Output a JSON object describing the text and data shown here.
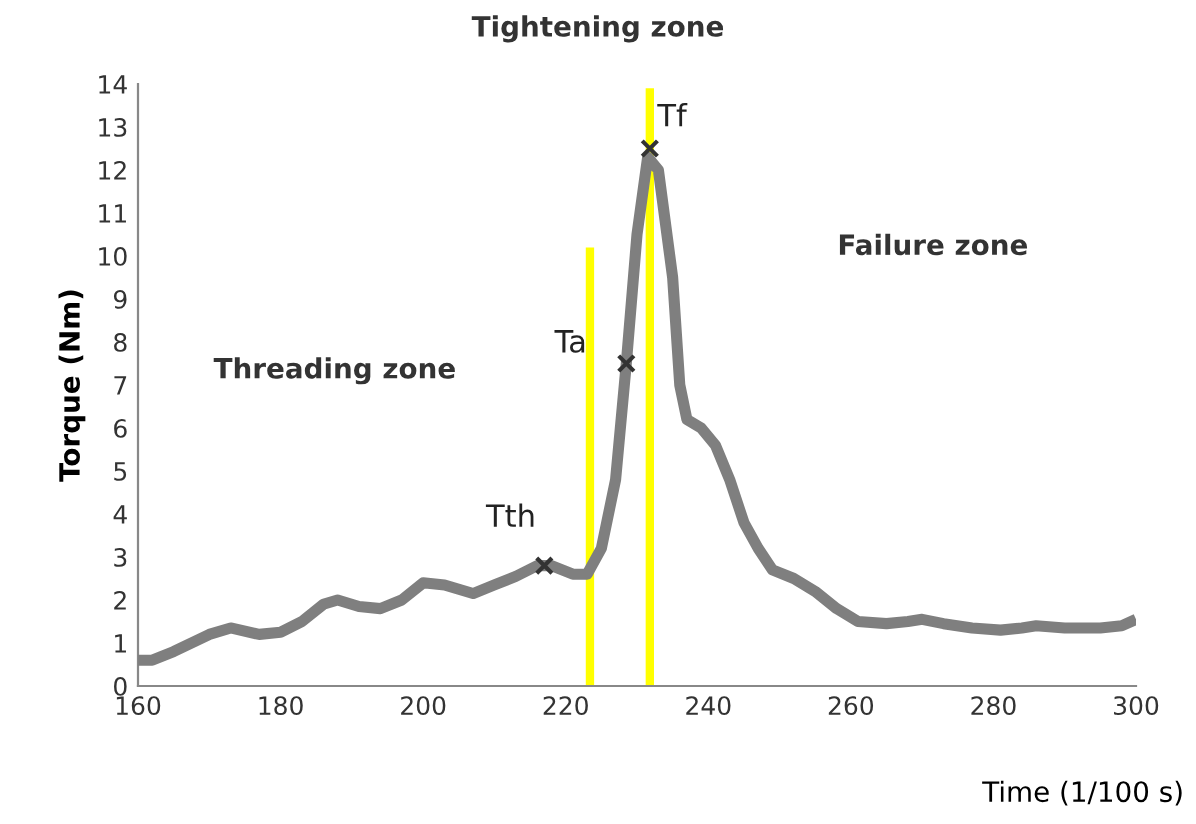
{
  "chart_data": {
    "type": "line",
    "xlabel": "Time (1/100 s)",
    "ylabel": "Torque (Nm)",
    "xlim": [
      160,
      300
    ],
    "ylim": [
      0,
      14
    ],
    "xticks": [
      160,
      180,
      200,
      220,
      240,
      260,
      280,
      300
    ],
    "yticks": [
      0,
      1,
      2,
      3,
      4,
      5,
      6,
      7,
      8,
      9,
      10,
      11,
      12,
      13,
      14
    ],
    "grid": false,
    "series": [
      {
        "color": "#7f7f7f",
        "x": [
          160,
          162,
          165,
          170,
          173,
          177,
          180,
          183,
          186,
          188,
          191,
          194,
          197,
          200,
          203,
          207,
          210,
          213,
          216,
          218,
          221,
          223,
          225,
          227,
          228.5,
          230,
          231.5,
          233,
          235,
          236,
          237,
          239,
          241,
          243,
          245,
          247,
          249,
          252,
          255,
          258,
          261,
          265,
          268,
          270,
          273,
          277,
          281,
          284,
          286,
          290,
          295,
          298,
          300
        ],
        "values": [
          0.6,
          0.6,
          0.8,
          1.2,
          1.35,
          1.2,
          1.25,
          1.5,
          1.9,
          2.0,
          1.85,
          1.8,
          2.0,
          2.4,
          2.35,
          2.15,
          2.35,
          2.55,
          2.8,
          2.8,
          2.6,
          2.6,
          3.2,
          4.8,
          7.5,
          10.5,
          12.3,
          12.0,
          9.5,
          7.0,
          6.2,
          6.0,
          5.6,
          4.8,
          3.8,
          3.2,
          2.7,
          2.5,
          2.2,
          1.8,
          1.5,
          1.45,
          1.5,
          1.55,
          1.45,
          1.35,
          1.3,
          1.35,
          1.4,
          1.35,
          1.35,
          1.4,
          1.55
        ]
      },
      {
        "type": "line",
        "color": "#ffff00",
        "x": [
          223.4,
          223.4
        ],
        "values": [
          0,
          10.2
        ]
      },
      {
        "type": "line",
        "color": "#ffff00",
        "x": [
          231.8,
          231.8
        ],
        "values": [
          0,
          13.9
        ]
      },
      {
        "type": "scatter",
        "color": "#333333",
        "marker": "cross",
        "x": [
          217,
          228.5,
          231.8
        ],
        "values": [
          2.8,
          7.5,
          12.5
        ]
      }
    ],
    "annotations": [
      {
        "text": "Tth",
        "x": 217,
        "y": 2.8
      },
      {
        "text": "Ta",
        "x": 228.5,
        "y": 7.5
      },
      {
        "text": "Tf",
        "x": 231.8,
        "y": 12.5
      },
      "Threading zone",
      "Tightening zone",
      "Failure zone"
    ]
  }
}
